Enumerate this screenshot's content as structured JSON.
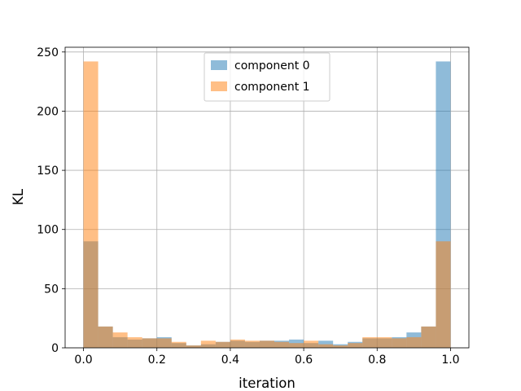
{
  "chart_data": {
    "type": "bar",
    "subtype": "overlaid-histogram",
    "title": "",
    "xlabel": "iteration",
    "ylabel": "KL",
    "xlim": [
      -0.05,
      1.05
    ],
    "ylim": [
      0,
      254
    ],
    "xticks": [
      "0.0",
      "0.2",
      "0.4",
      "0.6",
      "0.8",
      "1.0"
    ],
    "yticks": [
      "0",
      "50",
      "100",
      "150",
      "200",
      "250"
    ],
    "grid": true,
    "legend_position": "upper center",
    "bin_edges": [
      0.0,
      0.04,
      0.08,
      0.12,
      0.16,
      0.2,
      0.24,
      0.28,
      0.32,
      0.36,
      0.4,
      0.44,
      0.48,
      0.52,
      0.56,
      0.6,
      0.64,
      0.68,
      0.72,
      0.76,
      0.8,
      0.84,
      0.88,
      0.92,
      0.96,
      1.0
    ],
    "series": [
      {
        "name": "component 0",
        "color": "#1f77b4",
        "alpha": 0.5,
        "values": [
          90,
          18,
          9,
          7,
          8,
          9,
          4,
          2,
          3,
          5,
          6,
          5,
          6,
          6,
          7,
          4,
          6,
          3,
          5,
          8,
          8,
          9,
          13,
          18,
          242
        ]
      },
      {
        "name": "component 1",
        "color": "#ff7f0e",
        "alpha": 0.5,
        "values": [
          242,
          18,
          13,
          9,
          8,
          8,
          5,
          2,
          6,
          5,
          7,
          6,
          6,
          5,
          4,
          6,
          3,
          2,
          4,
          9,
          9,
          8,
          9,
          18,
          90
        ]
      }
    ]
  }
}
